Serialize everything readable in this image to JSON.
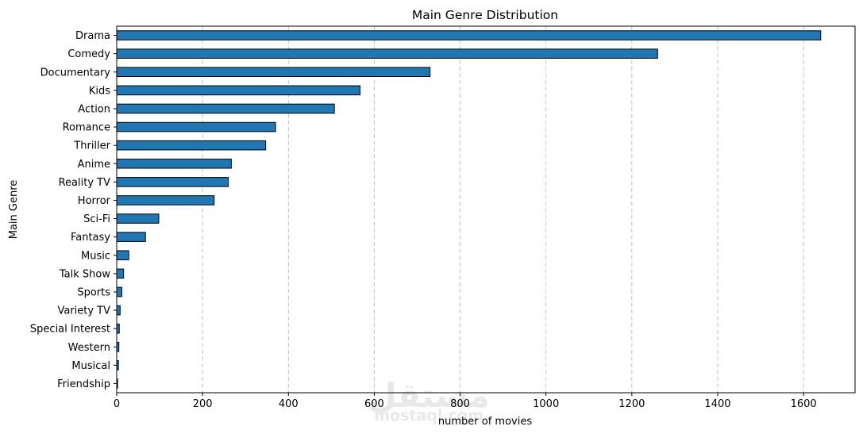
{
  "chart_data": {
    "type": "bar",
    "orientation": "horizontal",
    "title": "Main Genre Distribution",
    "xlabel": "number of movies",
    "ylabel": "Main Genre",
    "xlim": [
      0,
      1720
    ],
    "xticks": [
      0,
      200,
      400,
      600,
      800,
      1000,
      1200,
      1400,
      1600
    ],
    "grid": "x-dashed",
    "bar_color": "#1f77b4",
    "edge_color": "#000000",
    "categories": [
      "Drama",
      "Comedy",
      "Documentary",
      "Kids",
      "Action",
      "Romance",
      "Thriller",
      "Anime",
      "Reality TV",
      "Horror",
      "Sci-Fi",
      "Fantasy",
      "Music",
      "Talk Show",
      "Sports",
      "Variety TV",
      "Special Interest",
      "Western",
      "Musical",
      "Friendship"
    ],
    "values": [
      1640,
      1260,
      730,
      567,
      507,
      370,
      347,
      267,
      260,
      227,
      98,
      67,
      28,
      16,
      12,
      8,
      6,
      5,
      4,
      2
    ]
  },
  "watermark": {
    "arabic": "مستقل",
    "latin": "mostaql.com"
  }
}
